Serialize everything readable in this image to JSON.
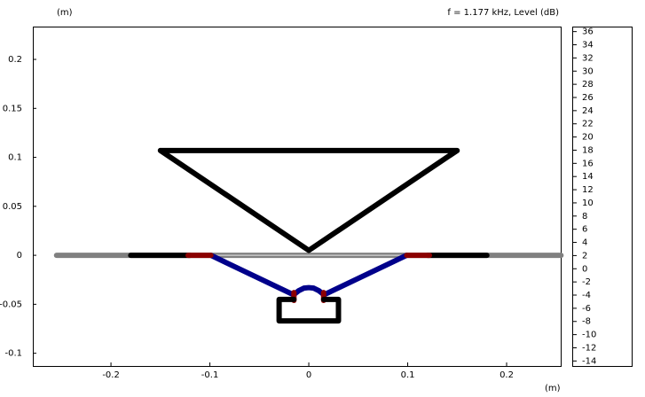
{
  "chart_data": {
    "type": "geometry",
    "title": "f = 1.177 kHz, Level  (dB)",
    "y_label": "(m)",
    "x_label": "(m)",
    "xlim": [
      -0.279,
      0.2547
    ],
    "ylim": [
      -0.113,
      0.2335
    ],
    "xticks": [
      -0.2,
      -0.1,
      0,
      0.1,
      0.2
    ],
    "yticks": [
      -0.1,
      -0.05,
      0,
      0.05,
      0.1,
      0.15,
      0.2
    ],
    "grid": false,
    "series": [
      {
        "color": "#808080",
        "x": [
          -0.255,
          0.255
        ],
        "y": [
          0,
          0
        ]
      },
      {
        "color": "#c8c8c8",
        "x": [
          -0.1,
          0.1
        ],
        "y": [
          0,
          0
        ]
      },
      {
        "color": "#000000",
        "x": [
          -0.18,
          -0.12
        ],
        "y": [
          0,
          0
        ]
      },
      {
        "color": "#000000",
        "x": [
          0.12,
          0.18
        ],
        "y": [
          0,
          0
        ]
      },
      {
        "color": "#00008b",
        "x": [
          -0.099,
          -0.016
        ],
        "y": [
          0,
          -0.04
        ]
      },
      {
        "color": "#00008b",
        "x": [
          0.099,
          0.016
        ],
        "y": [
          0,
          -0.04
        ]
      },
      {
        "color": "#8b0000",
        "x": [
          -0.122,
          -0.099
        ],
        "y": [
          0,
          0
        ]
      },
      {
        "color": "#8b0000",
        "x": [
          0.099,
          0.122
        ],
        "y": [
          0,
          0
        ]
      },
      {
        "color": "#00008b",
        "x": [
          -0.015,
          -0.01,
          -0.005,
          0,
          0.005,
          0.01,
          0.015
        ],
        "y": [
          -0.04,
          -0.036,
          -0.0335,
          -0.033,
          -0.0335,
          -0.036,
          -0.04
        ]
      },
      {
        "color": "#8b0000",
        "x": [
          -0.015,
          -0.015
        ],
        "y": [
          -0.038,
          -0.046
        ]
      },
      {
        "color": "#8b0000",
        "x": [
          0.015,
          0.015
        ],
        "y": [
          -0.038,
          -0.046
        ]
      },
      {
        "color": "#000000",
        "x": [
          -0.015,
          -0.03,
          -0.03,
          0.03,
          0.03,
          0.015
        ],
        "y": [
          -0.045,
          -0.045,
          -0.067,
          -0.067,
          -0.045,
          -0.045
        ]
      },
      {
        "color": "#000000",
        "x": [
          -0.15,
          0.15,
          0,
          -0.15
        ],
        "y": [
          0.107,
          0.107,
          0.005,
          0.107
        ]
      }
    ],
    "colorbar": {
      "lim": [
        -14.76,
        36.76
      ],
      "ticks": [
        36,
        34,
        32,
        30,
        28,
        26,
        24,
        22,
        20,
        18,
        16,
        14,
        12,
        10,
        8,
        6,
        4,
        2,
        0,
        -2,
        -4,
        -6,
        -8,
        -10,
        -12,
        -14
      ]
    }
  }
}
